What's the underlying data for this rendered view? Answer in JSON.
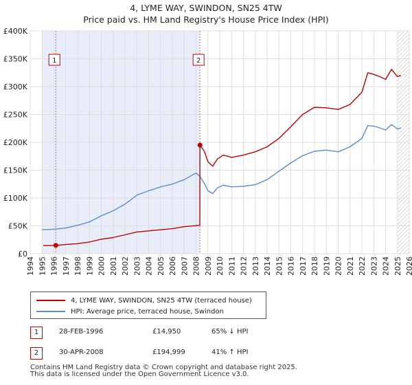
{
  "chart_data": {
    "type": "line",
    "title": "4, LYME WAY, SWINDON, SN25 4TW",
    "subtitle": "Price paid vs. HM Land Registry's House Price Index (HPI)",
    "xlim": [
      1994,
      2026
    ],
    "ylim": [
      0,
      400000
    ],
    "x_ticks": [
      "1994",
      "1995",
      "1996",
      "1997",
      "1998",
      "1999",
      "2000",
      "2001",
      "2002",
      "2003",
      "2004",
      "2005",
      "2006",
      "2007",
      "2008",
      "2009",
      "2010",
      "2011",
      "2012",
      "2013",
      "2014",
      "2015",
      "2016",
      "2017",
      "2018",
      "2019",
      "2020",
      "2021",
      "2022",
      "2023",
      "2024",
      "2025",
      "2026"
    ],
    "y_ticks": [
      {
        "value": 0,
        "label": "£0"
      },
      {
        "value": 50000,
        "label": "£50K"
      },
      {
        "value": 100000,
        "label": "£100K"
      },
      {
        "value": 150000,
        "label": "£150K"
      },
      {
        "value": 200000,
        "label": "£200K"
      },
      {
        "value": 250000,
        "label": "£250K"
      },
      {
        "value": 300000,
        "label": "£300K"
      },
      {
        "value": 350000,
        "label": "£350K"
      },
      {
        "value": 400000,
        "label": "£400K"
      }
    ],
    "series": [
      {
        "name": "4, LYME WAY, SWINDON, SN25 4TW (terraced house)",
        "color": "#c00000",
        "x": [
          1995.1,
          1996.16,
          1997,
          1998,
          1999,
          2000,
          2001,
          2002,
          2003,
          2004,
          2005,
          2006,
          2007,
          2008.32,
          2008.33,
          2008.7,
          2009.0,
          2009.4,
          2009.8,
          2010.3,
          2011,
          2012,
          2013,
          2014,
          2015,
          2016,
          2017,
          2018,
          2019,
          2020,
          2021,
          2022,
          2022.5,
          2023,
          2023.5,
          2024,
          2024.5,
          2025,
          2025.3
        ],
        "y": [
          14500,
          14950,
          16500,
          18000,
          21000,
          26000,
          29000,
          34000,
          39000,
          41000,
          43000,
          45000,
          48500,
          51000,
          194999,
          184000,
          165000,
          157000,
          170000,
          177000,
          173000,
          177000,
          183000,
          192000,
          207000,
          228000,
          250000,
          263000,
          262000,
          259000,
          268000,
          290000,
          325000,
          322000,
          318000,
          313000,
          331000,
          318000,
          320000
        ]
      },
      {
        "name": "HPI: Average price, terraced house, Swindon",
        "color": "#5b8ccc",
        "x": [
          1995.0,
          1996,
          1997,
          1998,
          1999,
          2000,
          2001,
          2002,
          2003,
          2004,
          2005,
          2006,
          2007,
          2008.0,
          2008.33,
          2008.7,
          2009.0,
          2009.4,
          2009.8,
          2010.3,
          2011,
          2012,
          2013,
          2014,
          2015,
          2016,
          2017,
          2018,
          2019,
          2020,
          2021,
          2022,
          2022.5,
          2023,
          2023.5,
          2024,
          2024.5,
          2025,
          2025.3
        ],
        "y": [
          43000,
          44000,
          46000,
          51000,
          57000,
          68000,
          77000,
          89000,
          105000,
          113000,
          120000,
          125000,
          133000,
          145000,
          138500,
          126000,
          113000,
          108000,
          118000,
          123000,
          120000,
          121000,
          124000,
          133000,
          148000,
          163000,
          176000,
          184000,
          186000,
          183000,
          192000,
          207000,
          230000,
          229000,
          226000,
          222000,
          232000,
          224000,
          226000
        ]
      }
    ],
    "sales": [
      {
        "label": "1",
        "x": 1996.16,
        "y": 14950,
        "date": "28-FEB-1996",
        "price": "£14,950",
        "hpi": "65% ↓ HPI"
      },
      {
        "label": "2",
        "x": 2008.33,
        "y": 194999,
        "date": "30-APR-2008",
        "price": "£194,999",
        "hpi": "41% ↑ HPI"
      }
    ],
    "shaded_ranges": [
      [
        1995.0,
        2008.33
      ]
    ],
    "hatched_range": [
      2025.0,
      2026
    ],
    "legend": [
      {
        "label": "4, LYME WAY, SWINDON, SN25 4TW (terraced house)",
        "color": "#c00000"
      },
      {
        "label": "HPI: Average price, terraced house, Swindon",
        "color": "#5b8ccc"
      }
    ]
  },
  "footer": {
    "line1": "Contains HM Land Registry data © Crown copyright and database right 2025.",
    "line2": "This data is licensed under the Open Government Licence v3.0."
  }
}
